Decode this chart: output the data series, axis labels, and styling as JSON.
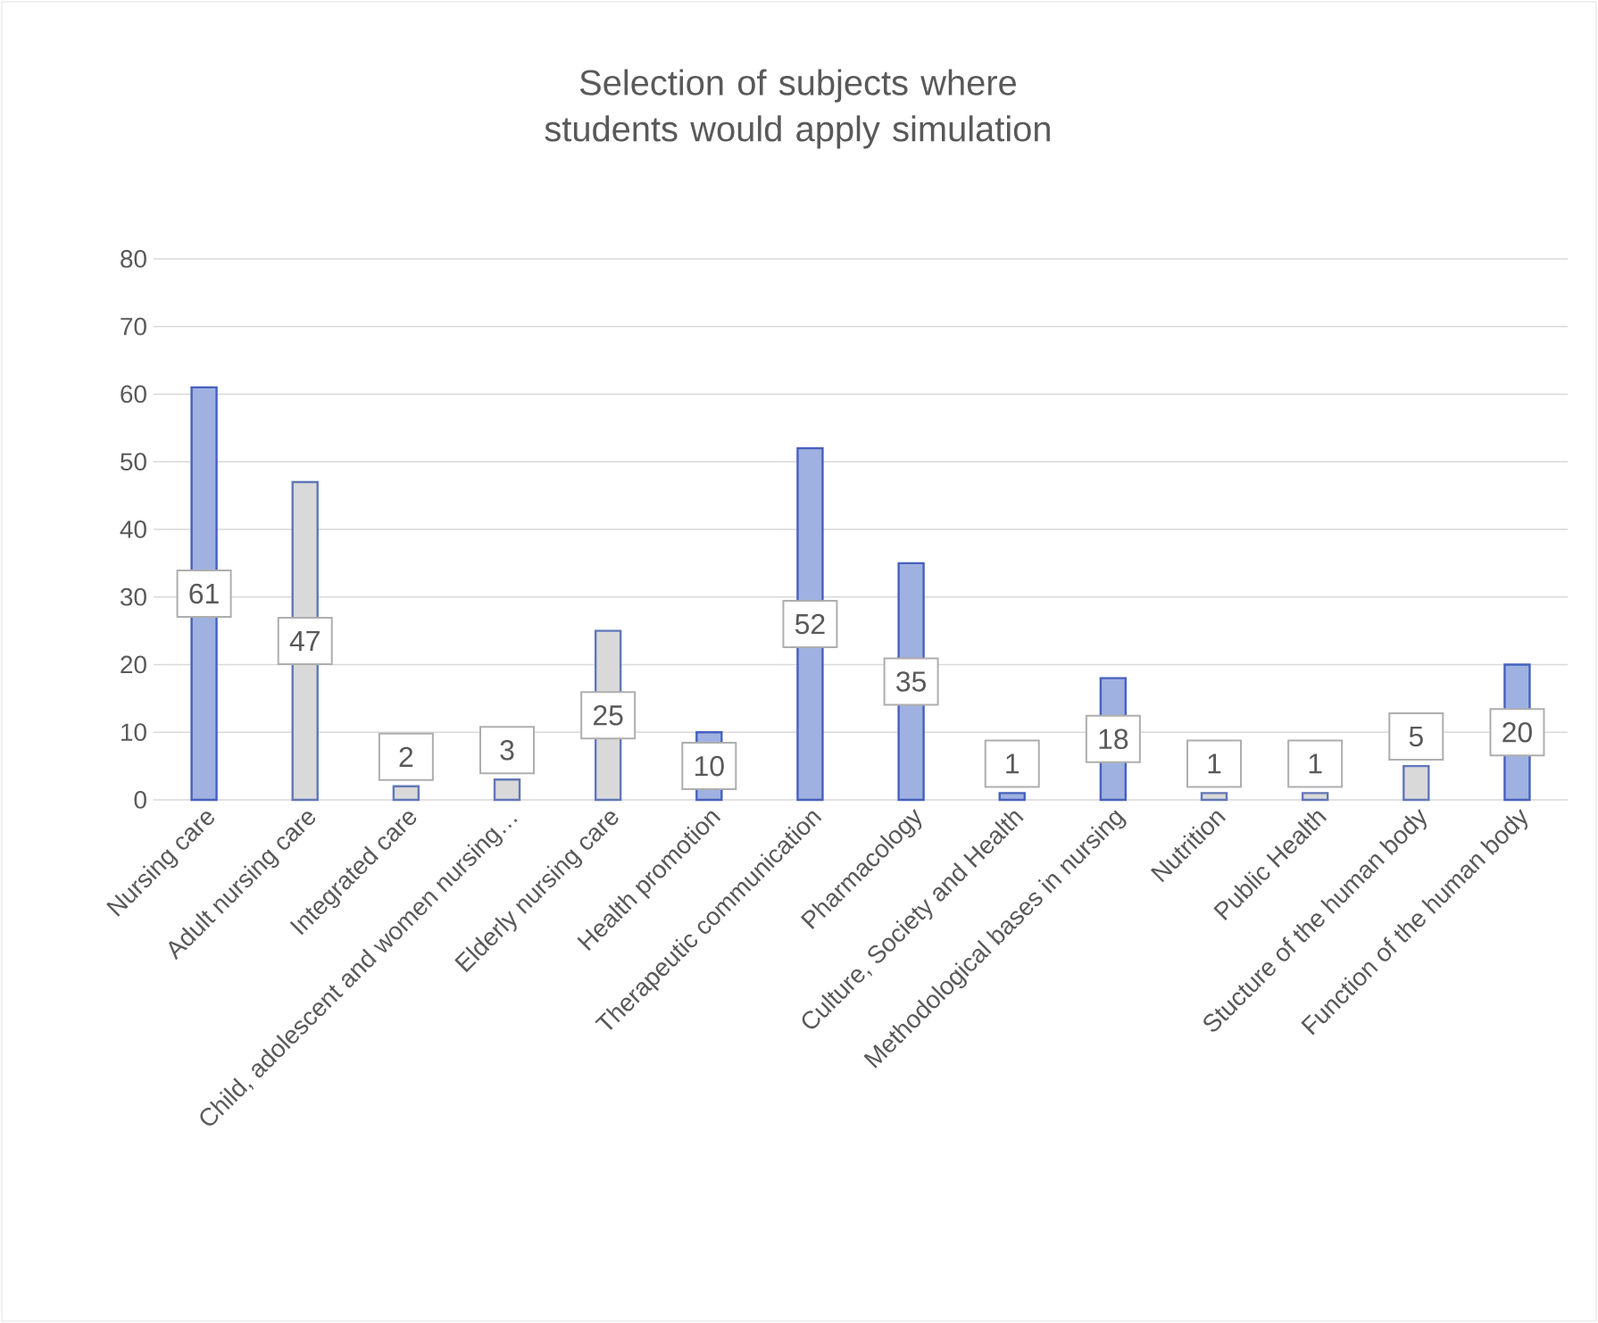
{
  "chart_data": {
    "type": "bar",
    "title": "Selection of subjects where students would apply simulation",
    "categories": [
      "Nursing care",
      "Adult nursing care",
      "Integrated care",
      "Child, adolescent and women nursing…",
      "Elderly nursing care",
      "Health promotion",
      "Therapeutic communication",
      "Pharmacology",
      "Culture, Society and Health",
      "Methodological bases in nursing",
      "Nutrition",
      "Public Health",
      "Stucture of the human body",
      "Function of the human body"
    ],
    "values": [
      61,
      47,
      2,
      3,
      25,
      10,
      52,
      35,
      1,
      18,
      1,
      1,
      5,
      20
    ],
    "colors": [
      "#9fb1e0",
      "#d9d9d9",
      "#d9d9d9",
      "#d9d9d9",
      "#d9d9d9",
      "#9fb1e0",
      "#9fb1e0",
      "#9fb1e0",
      "#9fb1e0",
      "#9fb1e0",
      "#d9d9d9",
      "#d9d9d9",
      "#d9d9d9",
      "#9fb1e0"
    ],
    "ylim": [
      0,
      80
    ],
    "yticks": [
      0,
      10,
      20,
      30,
      40,
      50,
      60,
      70,
      80
    ],
    "grid": "y",
    "data_labels": true
  }
}
